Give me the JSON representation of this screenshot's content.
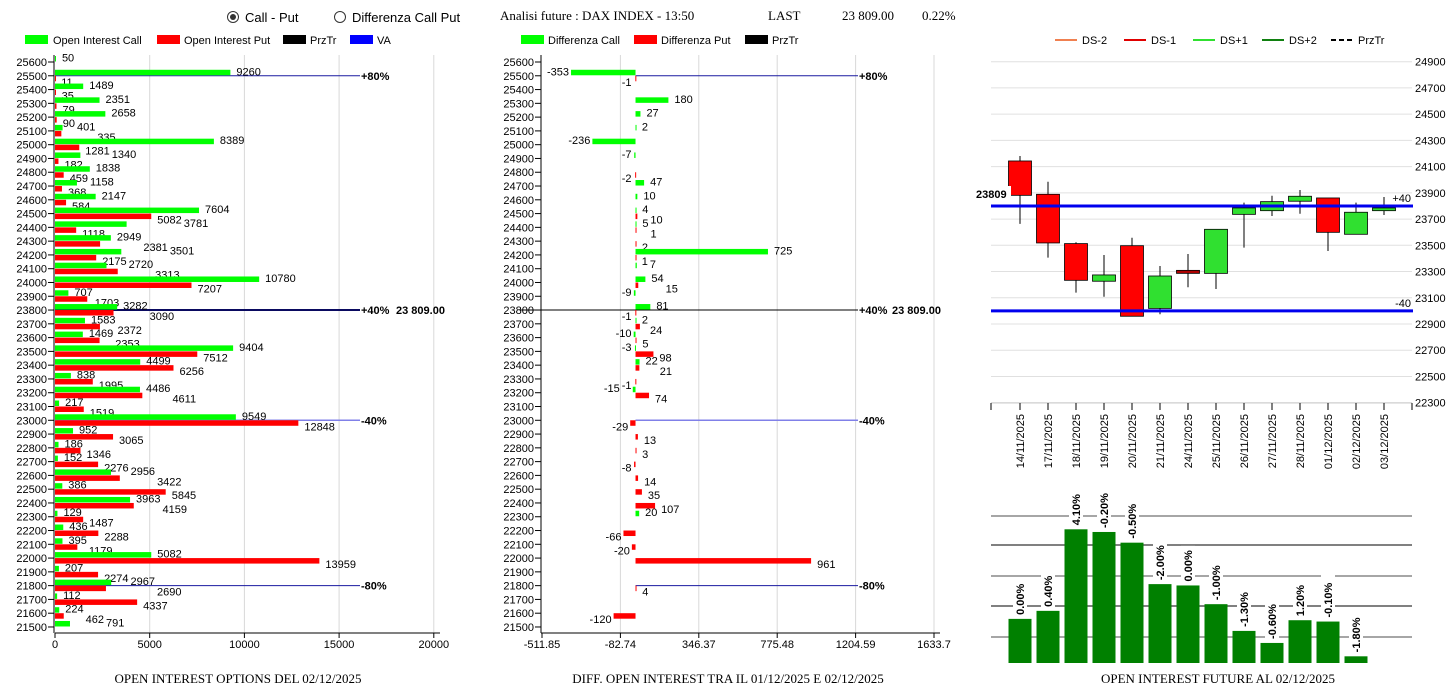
{
  "header": {
    "radio_options": [
      {
        "label": "Call - Put",
        "selected": true
      },
      {
        "label": "Differenza Call Put",
        "selected": false
      }
    ],
    "title": "Analisi future : DAX INDEX - 13:50",
    "last_label": "LAST",
    "last_value": "23 809.00",
    "change": "0.22%"
  },
  "colors": {
    "call": "#00ff00",
    "put": "#ff0000",
    "przTr": "#000000",
    "va": "#0000ff",
    "line_80": "#1a1aa0",
    "line_40_up": "#0a0a60",
    "line_40_down": "#8080e8",
    "candle_level": "#0000ee",
    "future_oi": "#008000",
    "ds_minus2": "#f08050",
    "ds_minus1": "#e00000",
    "ds_plus1": "#30e030",
    "ds_plus2": "#108010"
  },
  "chart_data": [
    {
      "type": "bar",
      "orientation": "horizontal",
      "title": "OPEN INTEREST OPTIONS DEL 02/12/2025",
      "legend": [
        "Open Interest Call",
        "Open Interest Put",
        "PrzTr",
        "VA"
      ],
      "legend_placement": "top",
      "categories": [
        25600,
        25500,
        25400,
        25300,
        25200,
        25100,
        25000,
        24900,
        24800,
        24700,
        24600,
        24500,
        24400,
        24300,
        24200,
        24100,
        24000,
        23900,
        23800,
        23700,
        23600,
        23500,
        23400,
        23300,
        23200,
        23100,
        23000,
        22900,
        22800,
        22700,
        22600,
        22500,
        22400,
        22300,
        22200,
        22100,
        22000,
        21900,
        21800,
        21700,
        21600,
        21500
      ],
      "series": [
        {
          "name": "Open Interest Call",
          "values": [
            50,
            9260,
            1489,
            2351,
            2658,
            401,
            8389,
            1340,
            1838,
            1158,
            2147,
            7604,
            3781,
            2949,
            3501,
            2720,
            10780,
            707,
            3282,
            1583,
            1469,
            9404,
            4499,
            838,
            4486,
            217,
            9549,
            952,
            186,
            152,
            2956,
            386,
            3963,
            129,
            436,
            395,
            5082,
            207,
            2967,
            112,
            224,
            791
          ]
        },
        {
          "name": "Open Interest Put",
          "values": [
            null,
            11,
            35,
            79,
            90,
            335,
            1281,
            182,
            459,
            368,
            584,
            5082,
            1118,
            2381,
            2175,
            3313,
            7207,
            1703,
            3090,
            2372,
            2353,
            7512,
            6256,
            1995,
            4611,
            1519,
            12848,
            3065,
            1346,
            2276,
            3422,
            5845,
            4159,
            1487,
            2288,
            1179,
            13959,
            2274,
            2690,
            4337,
            462,
            null
          ]
        }
      ],
      "xlim": [
        0,
        20000
      ],
      "xticks": [
        "0",
        "5000",
        "10000",
        "15000",
        "20000"
      ],
      "grid": true,
      "reference_lines": [
        {
          "strike": 25500,
          "label": "+80%",
          "kind": "line_80"
        },
        {
          "strike": 23800,
          "label": "+40%",
          "kind": "line_40_up",
          "price_label": "23 809.00"
        },
        {
          "strike": 23000,
          "label": "-40%",
          "kind": "line_40_down"
        },
        {
          "strike": 21800,
          "label": "-80%",
          "kind": "line_80"
        }
      ]
    },
    {
      "type": "bar",
      "orientation": "horizontal",
      "title": "DIFF. OPEN INTEREST TRA IL 01/12/2025 E 02/12/2025",
      "legend": [
        "Differenza Call",
        "Differenza Put",
        "PrzTr"
      ],
      "legend_placement": "top",
      "categories": [
        25600,
        25500,
        25400,
        25300,
        25200,
        25100,
        25000,
        24900,
        24800,
        24700,
        24600,
        24500,
        24400,
        24300,
        24200,
        24100,
        24000,
        23900,
        23800,
        23700,
        23600,
        23500,
        23400,
        23300,
        23200,
        23100,
        23000,
        22900,
        22800,
        22700,
        22600,
        22500,
        22400,
        22300,
        22200,
        22100,
        22000,
        21900,
        21800,
        21700,
        21600,
        21500
      ],
      "series": [
        {
          "name": "Differenza Call",
          "values": [
            null,
            -353,
            null,
            180,
            27,
            2,
            -236,
            -7,
            null,
            47,
            10,
            4,
            5,
            null,
            725,
            7,
            54,
            -9,
            81,
            2,
            -10,
            -3,
            22,
            null,
            -15,
            null,
            null,
            null,
            null,
            null,
            null,
            null,
            null,
            20,
            null,
            null,
            null,
            null,
            null,
            null,
            null,
            null
          ]
        },
        {
          "name": "Differenza Put",
          "values": [
            null,
            -1,
            null,
            null,
            null,
            null,
            null,
            null,
            -2,
            null,
            null,
            10,
            1,
            2,
            1,
            null,
            15,
            null,
            -1,
            24,
            5,
            98,
            21,
            -1,
            74,
            null,
            -29,
            13,
            3,
            -8,
            14,
            35,
            107,
            null,
            -66,
            -20,
            961,
            null,
            4,
            null,
            -120,
            null
          ]
        }
      ],
      "xlim": [
        -511.85,
        1633.7
      ],
      "xticks": [
        "-511.85",
        "-82.74",
        "346.37",
        "775.48",
        "1204.59",
        "1633.7"
      ],
      "grid": true,
      "reference_lines": [
        {
          "strike": 25500,
          "label": "+80%",
          "kind": "line_80"
        },
        {
          "strike": 23800,
          "label": "+40%",
          "kind": "przTr",
          "price_label": "23 809.00"
        },
        {
          "strike": 23000,
          "label": "-40%",
          "kind": "line_40_down"
        },
        {
          "strike": 21800,
          "label": "-80%",
          "kind": "line_80"
        }
      ]
    },
    {
      "type": "candlestick",
      "legend": [
        "DS-2",
        "DS-1",
        "DS+1",
        "DS+2",
        "PrzTr"
      ],
      "legend_placement": "top",
      "categories": [
        "14/11/2025",
        "17/11/2025",
        "18/11/2025",
        "19/11/2025",
        "20/11/2025",
        "21/11/2025",
        "24/11/2025",
        "25/11/2025",
        "26/11/2025",
        "27/11/2025",
        "28/11/2025",
        "01/12/2025",
        "02/12/2025",
        "03/12/2025"
      ],
      "ohlc": [
        {
          "o": 24143,
          "h": 24181,
          "l": 23663,
          "c": 23881
        },
        {
          "o": 23889,
          "h": 23985,
          "l": 23406,
          "c": 23518
        },
        {
          "o": 23513,
          "h": 23523,
          "l": 23139,
          "c": 23233
        },
        {
          "o": 23226,
          "h": 23426,
          "l": 23108,
          "c": 23274
        },
        {
          "o": 23497,
          "h": 23558,
          "l": 22959,
          "c": 22959
        },
        {
          "o": 23019,
          "h": 23342,
          "l": 22974,
          "c": 23266
        },
        {
          "o": 23309,
          "h": 23434,
          "l": 23180,
          "c": 23286
        },
        {
          "o": 23286,
          "h": 23622,
          "l": 23167,
          "c": 23622
        },
        {
          "o": 23736,
          "h": 23825,
          "l": 23482,
          "c": 23785
        },
        {
          "o": 23764,
          "h": 23878,
          "l": 23723,
          "c": 23833
        },
        {
          "o": 23836,
          "h": 23922,
          "l": 23741,
          "c": 23874
        },
        {
          "o": 23861,
          "h": 23861,
          "l": 23457,
          "c": 23599
        },
        {
          "o": 23584,
          "h": 23825,
          "l": 23584,
          "c": 23752
        },
        {
          "o": 23764,
          "h": 23868,
          "l": 23731,
          "c": 23785
        }
      ],
      "ylim": [
        22300,
        24900
      ],
      "yticks": [
        "24900",
        "24700",
        "24500",
        "24300",
        "24100",
        "23900",
        "23700",
        "23500",
        "23300",
        "23100",
        "22900",
        "22700",
        "22500",
        "22300"
      ],
      "grid": true,
      "levels": [
        {
          "value": 23800,
          "label": "+40"
        },
        {
          "value": 23000,
          "label": "-40"
        }
      ],
      "price_label": "23809"
    },
    {
      "type": "bar",
      "title": "OPEN INTEREST FUTURE AL 02/12/2025",
      "categories": [
        "14/11/2025",
        "17/11/2025",
        "18/11/2025",
        "19/11/2025",
        "20/11/2025",
        "21/11/2025",
        "24/11/2025",
        "25/11/2025",
        "26/11/2025",
        "27/11/2025",
        "28/11/2025",
        "01/12/2025",
        "02/12/2025"
      ],
      "relative_values": [
        33,
        39,
        100,
        98,
        90,
        59,
        58,
        44,
        24,
        15,
        32,
        31,
        5
      ],
      "data_labels": [
        "0.00%",
        "0.40%",
        "4.10%",
        "-0.20%",
        "-0.50%",
        "-2.00%",
        "0.00%",
        "-1.00%",
        "-1.30%",
        "-0.60%",
        "1.20%",
        "-0.10%",
        "-1.80%"
      ],
      "grid": true
    }
  ]
}
